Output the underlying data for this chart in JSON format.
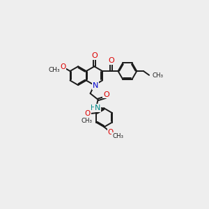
{
  "bg_color": "#eeeeee",
  "bond_color": "#1a1a1a",
  "o_color": "#dd0000",
  "n_color": "#0000cc",
  "nh_color": "#008888",
  "figsize": [
    3.0,
    3.0
  ],
  "dpi": 100,
  "xlim": [
    0,
    10
  ],
  "ylim": [
    0,
    10
  ],
  "bl": 0.58
}
